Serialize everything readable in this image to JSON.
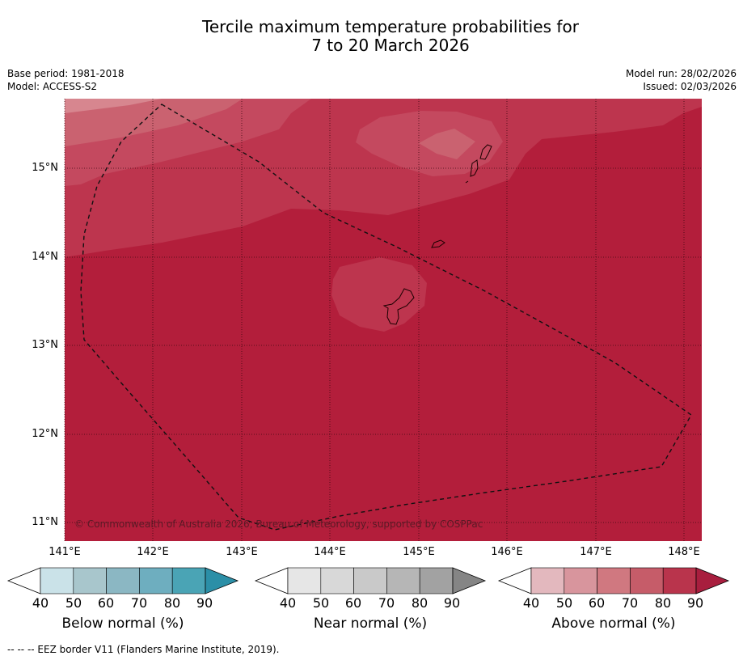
{
  "title": {
    "line1": "Tercile maximum temperature probabilities for",
    "line2": "7 to 20 March 2026"
  },
  "meta": {
    "base_period": "Base period: 1981-2018",
    "model": "Model: ACCESS-S2",
    "model_run": "Model run: 28/02/2026",
    "issued": "Issued: 02/03/2026"
  },
  "map": {
    "lat_labels": [
      "15°N",
      "14°N",
      "13°N",
      "12°N",
      "11°N"
    ],
    "lon_labels": [
      "141°E",
      "142°E",
      "143°E",
      "144°E",
      "145°E",
      "146°E",
      "147°E",
      "148°E"
    ],
    "copyright": "© Commonwealth of Australia 2026, Bureau of Meteorology, supported by COSPPac"
  },
  "colorbars": [
    {
      "label": "Below normal (%)",
      "ticks": [
        "40",
        "50",
        "60",
        "70",
        "80",
        "90"
      ],
      "colors": [
        "#cae2e8",
        "#a8c6cc",
        "#8bb7c3",
        "#6eaebf",
        "#4aa4b5",
        "#2b8fa7"
      ]
    },
    {
      "label": "Near normal (%)",
      "ticks": [
        "40",
        "50",
        "60",
        "70",
        "80",
        "90"
      ],
      "colors": [
        "#e6e6e6",
        "#d8d8d8",
        "#c9c9c9",
        "#b6b6b6",
        "#a2a2a2",
        "#858585"
      ]
    },
    {
      "label": "Above normal (%)",
      "ticks": [
        "40",
        "50",
        "60",
        "70",
        "80",
        "90"
      ],
      "colors": [
        "#e3b8be",
        "#d8959d",
        "#d07880",
        "#c65c69",
        "#b9344c",
        "#a81e3e"
      ]
    }
  ],
  "footnote": "--  --  -- EEZ border V11 (Flanders Marine Institute, 2019)."
}
